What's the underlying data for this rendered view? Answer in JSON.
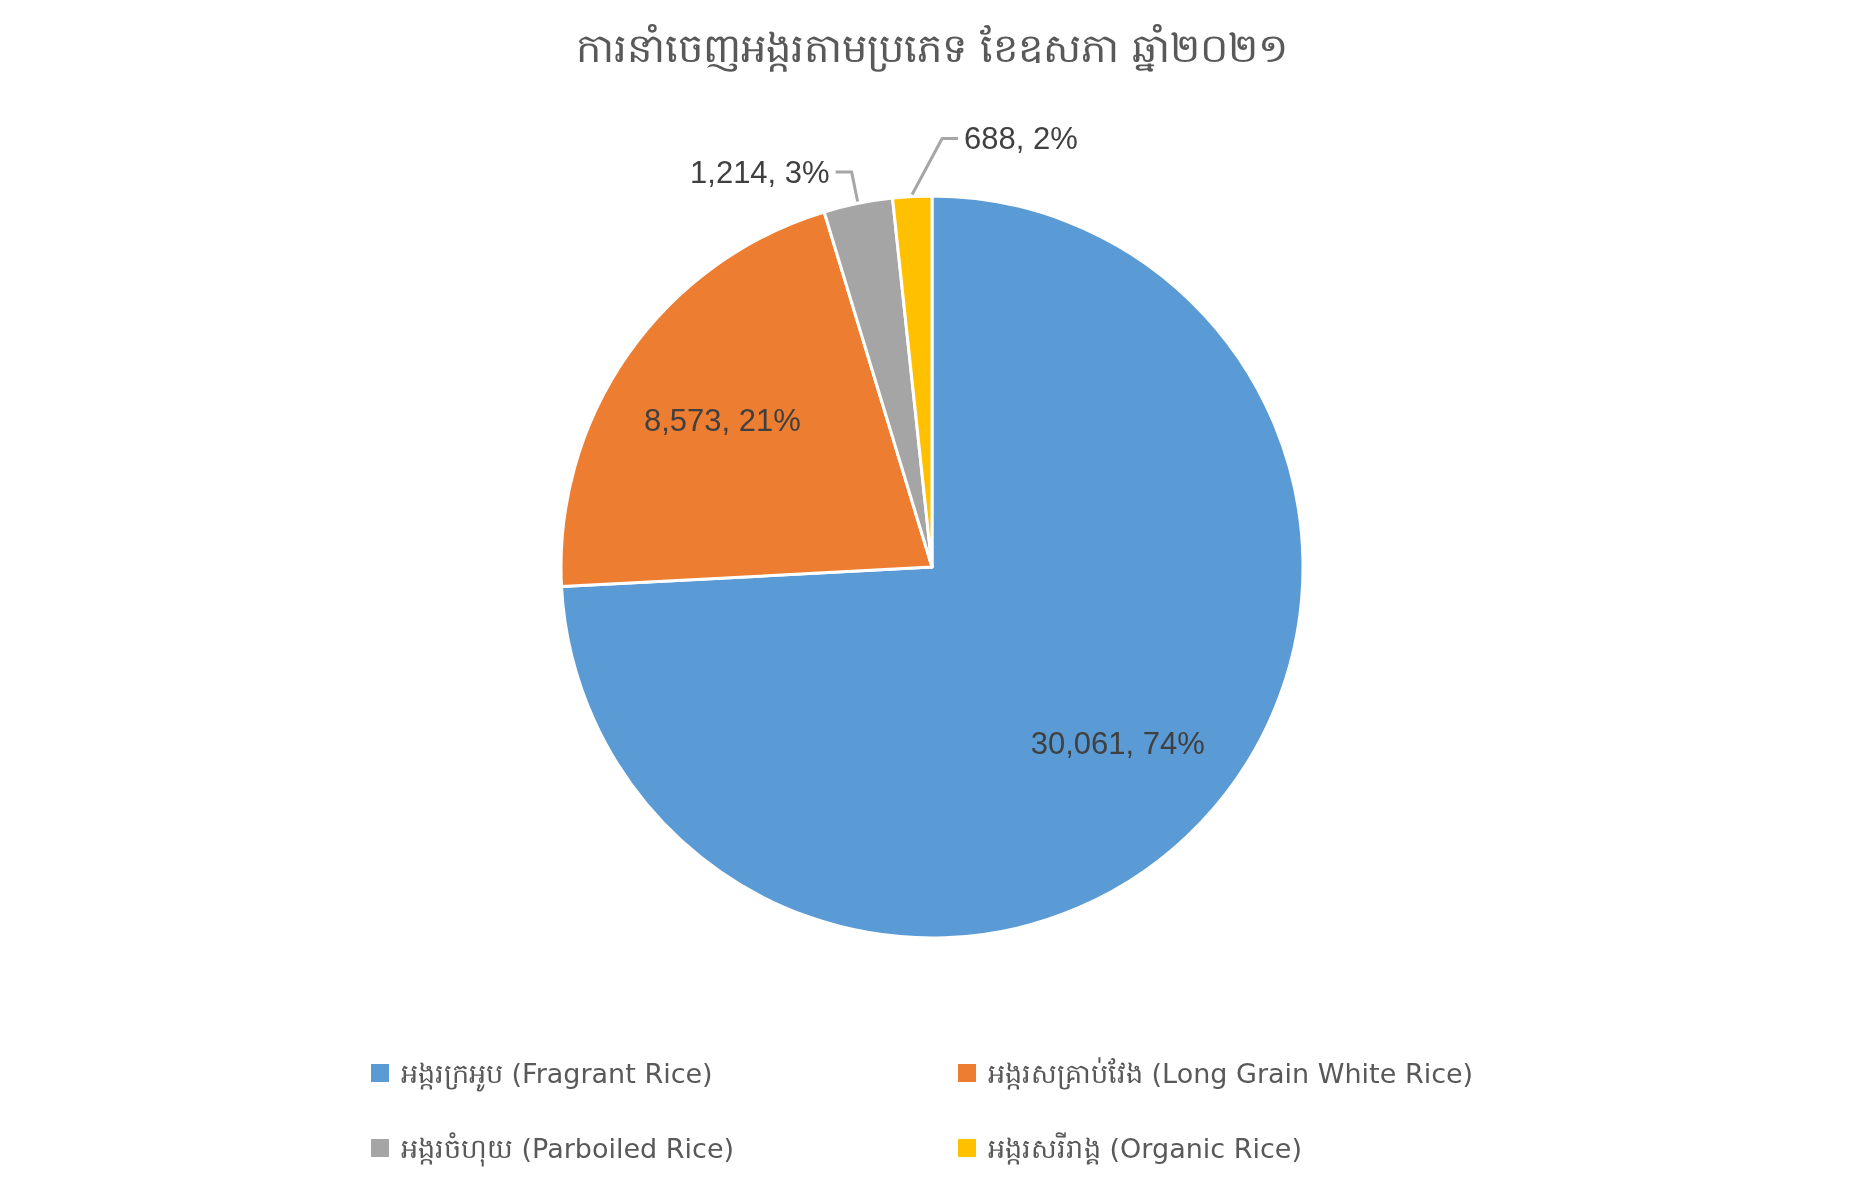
{
  "chart_data": {
    "type": "pie",
    "title": "ការនាំចេញអង្ករតាមប្រភេទ ខែឧសភា ឆ្នាំ២០២១",
    "categories": [
      "អង្ករក្រអូប (Fragrant Rice)",
      "អង្ករសគ្រាប់វែង (Long Grain White Rice)",
      "អង្ករចំហុយ (Parboiled Rice)",
      "អង្ករសរីរាង្គ (Organic Rice)"
    ],
    "values": [
      30061,
      8573,
      1214,
      688
    ],
    "colors": [
      "#5b9bd5",
      "#ed7d31",
      "#a5a5a5",
      "#ffc000"
    ],
    "value_labels": [
      "30,061, 74%",
      "8,573, 21%",
      "1,214, 3%",
      "688, 2%"
    ],
    "legend": "bottom"
  }
}
